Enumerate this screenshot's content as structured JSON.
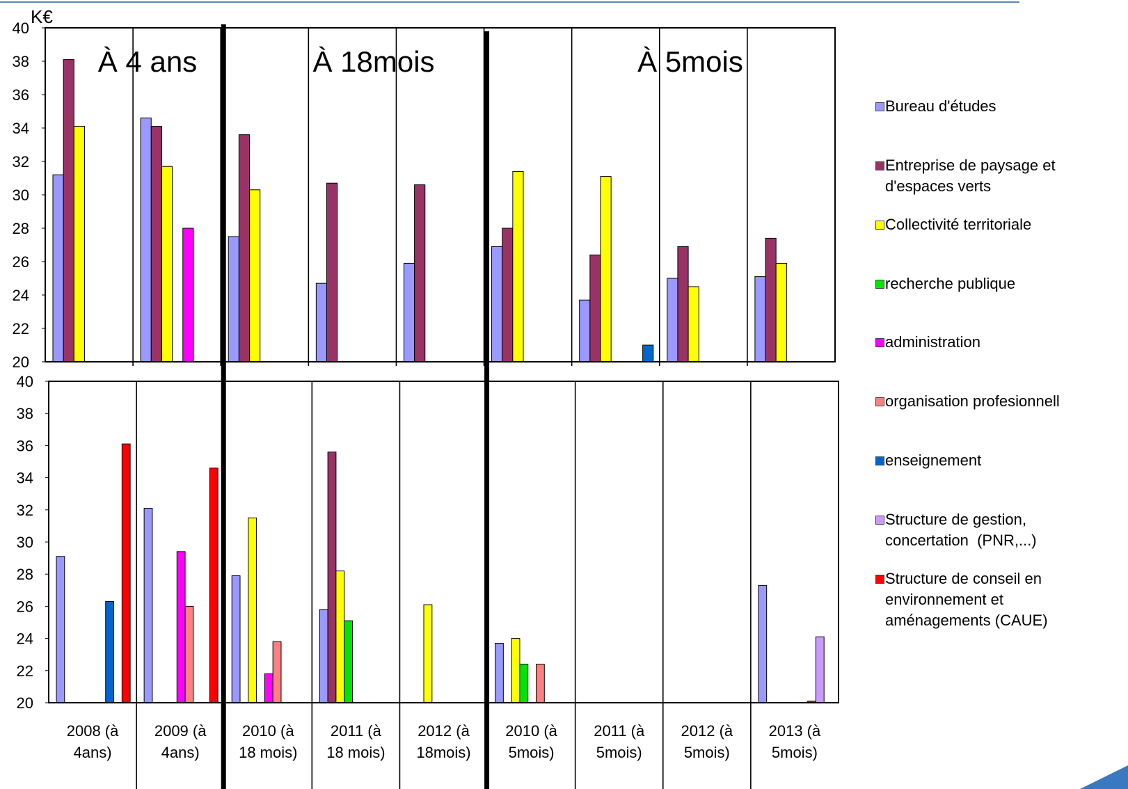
{
  "chart_data": {
    "type": "bar",
    "ylabel": "K€",
    "legend_position": "right",
    "grid": false,
    "categories": [
      "2008 (à\n4ans)",
      "2009 (à\n4ans)",
      "2010 (à\n18 mois)",
      "2011 (à\n18 mois)",
      "2012 (à\n18mois)",
      "2010 (à\n5mois)",
      "2011 (à\n5mois)",
      "2012 (à\n5mois)",
      "2013 (à\n5mois)"
    ],
    "section_breaks": [
      2,
      5
    ],
    "series": [
      {
        "name": "Bureau d'études",
        "color": "#9999FF"
      },
      {
        "name": "Entreprise de paysage et\nd'espaces verts",
        "color": "#993366"
      },
      {
        "name": "Collectivité territoriale",
        "color": "#FFFF00"
      },
      {
        "name": "recherche publique",
        "color": "#00E600"
      },
      {
        "name": "administration",
        "color": "#FF00FF"
      },
      {
        "name": "organisation profesionnell",
        "color": "#FF8080"
      },
      {
        "name": "enseignement",
        "color": "#0066CC"
      },
      {
        "name": "Structure de gestion,\nconcertation  (PNR,...)",
        "color": "#CC99FF"
      },
      {
        "name": "Structure de conseil en\nenvironnement et\naménagements (CAUE)",
        "color": "#FF0000"
      }
    ],
    "panels": [
      {
        "ylim": [
          20,
          40
        ],
        "ytick_step": 2,
        "show_categories": false,
        "section_labels": [
          "À 4 ans",
          "À 18mois",
          "À 5mois"
        ],
        "values": [
          [
            31.2,
            34.6,
            27.5,
            24.7,
            25.9,
            26.9,
            23.7,
            25.0,
            25.1
          ],
          [
            38.1,
            34.1,
            33.6,
            30.7,
            30.6,
            28.0,
            26.4,
            26.9,
            27.4
          ],
          [
            34.1,
            31.7,
            30.3,
            null,
            null,
            31.4,
            31.1,
            24.5,
            25.9
          ],
          [
            null,
            null,
            null,
            null,
            null,
            null,
            null,
            null,
            null
          ],
          [
            null,
            28.0,
            null,
            null,
            null,
            null,
            null,
            null,
            null
          ],
          [
            null,
            null,
            null,
            null,
            null,
            null,
            null,
            null,
            null
          ],
          [
            null,
            null,
            null,
            null,
            null,
            null,
            21.0,
            null,
            null
          ],
          [
            null,
            null,
            null,
            null,
            null,
            null,
            null,
            null,
            null
          ],
          [
            null,
            null,
            null,
            null,
            null,
            null,
            null,
            null,
            null
          ]
        ]
      },
      {
        "ylim": [
          20,
          40
        ],
        "ytick_step": 2,
        "show_categories": true,
        "section_labels": [],
        "values": [
          [
            29.1,
            32.1,
            27.9,
            25.8,
            null,
            23.7,
            null,
            null,
            27.3
          ],
          [
            null,
            null,
            null,
            35.6,
            null,
            null,
            null,
            null,
            null
          ],
          [
            null,
            null,
            31.5,
            28.2,
            26.1,
            24.0,
            null,
            null,
            null
          ],
          [
            null,
            null,
            null,
            25.1,
            null,
            22.4,
            null,
            null,
            null
          ],
          [
            null,
            29.4,
            21.8,
            null,
            null,
            null,
            null,
            null,
            null
          ],
          [
            null,
            26.0,
            23.8,
            null,
            null,
            22.4,
            null,
            null,
            null
          ],
          [
            26.3,
            null,
            null,
            null,
            null,
            null,
            null,
            null,
            20.1
          ],
          [
            null,
            null,
            null,
            null,
            null,
            null,
            null,
            null,
            24.1
          ],
          [
            36.1,
            34.6,
            null,
            null,
            null,
            null,
            null,
            null,
            null
          ]
        ]
      }
    ]
  }
}
